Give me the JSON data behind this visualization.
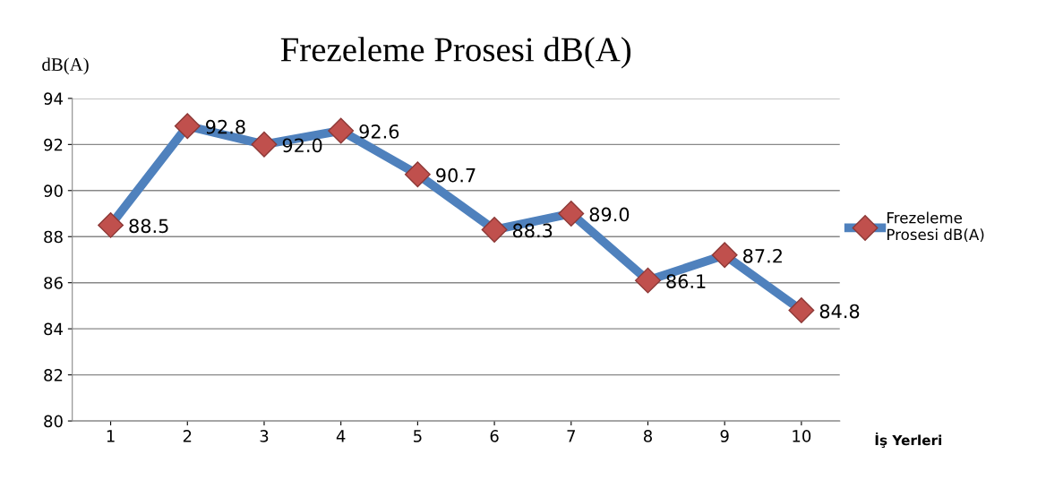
{
  "chart_data": {
    "type": "line",
    "title": "Frezeleme Prosesi dB(A)",
    "ylabel": "dB(A)",
    "xlabel": "İş Yerleri",
    "categories": [
      "1",
      "2",
      "3",
      "4",
      "5",
      "6",
      "7",
      "8",
      "9",
      "10"
    ],
    "series": [
      {
        "name": "Frezeleme Prosesi dB(A)",
        "color": "#4f81bd",
        "values": [
          88.5,
          92.8,
          92.0,
          92.6,
          90.7,
          88.3,
          89.0,
          86.1,
          87.2,
          84.8
        ],
        "value_labels": [
          "88.5",
          "92.8",
          "92.0",
          "92.6",
          "90.7",
          "88.3",
          "89.0",
          "86.1",
          "87.2",
          "84.8"
        ]
      }
    ],
    "ylim": [
      80,
      94
    ],
    "yticks": [
      80,
      82,
      84,
      86,
      88,
      90,
      92,
      94
    ],
    "grid": "y",
    "legend": "right",
    "marker": "diamond",
    "line_style": "solid"
  }
}
